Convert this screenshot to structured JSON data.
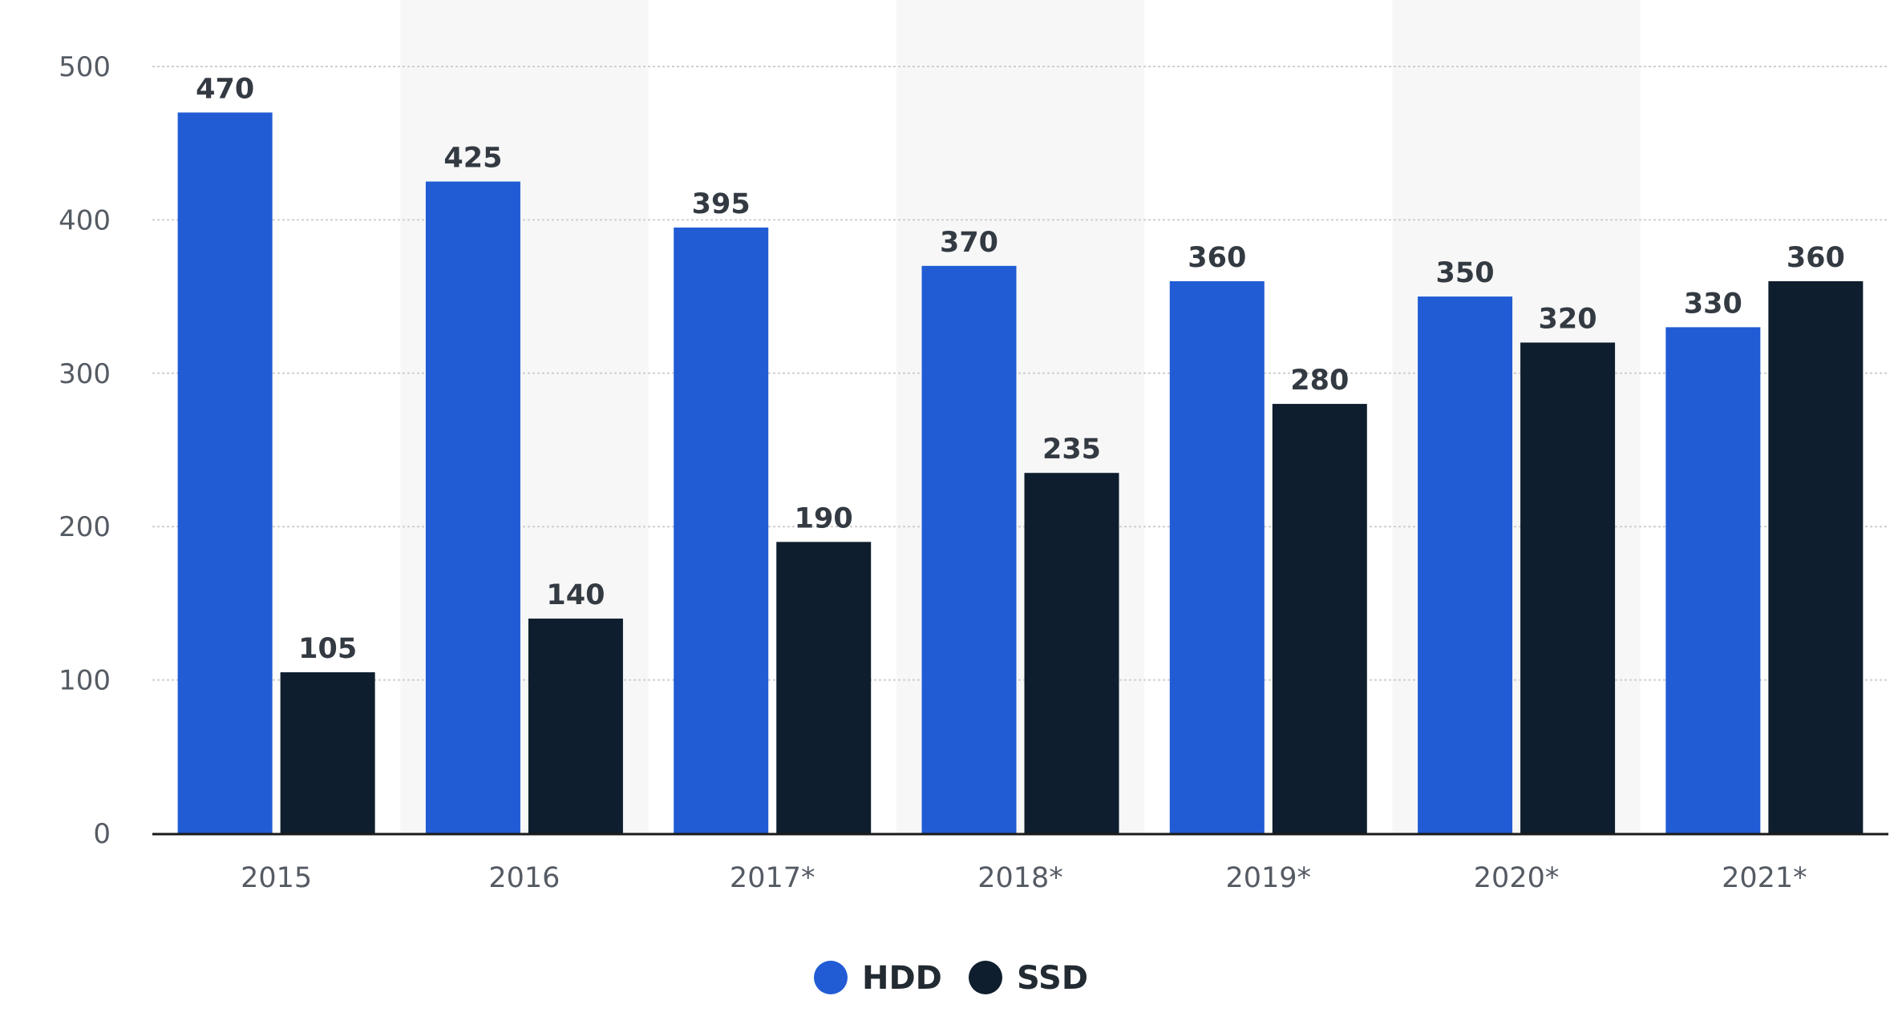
{
  "chart_data": {
    "type": "bar",
    "categories": [
      "2015",
      "2016",
      "2017*",
      "2018*",
      "2019*",
      "2020*",
      "2021*"
    ],
    "series": [
      {
        "name": "HDD",
        "color": "#215cd5",
        "values": [
          470,
          425,
          395,
          370,
          360,
          350,
          330
        ]
      },
      {
        "name": "SSD",
        "color": "#0f1e2e",
        "values": [
          105,
          140,
          190,
          235,
          280,
          320,
          360
        ]
      }
    ],
    "yticks": [
      0,
      100,
      200,
      300,
      400,
      500
    ],
    "ylim": [
      0,
      500
    ],
    "title": "",
    "xlabel": "",
    "ylabel": "",
    "grid": true,
    "data_labels": true,
    "legend_position": "bottom-center",
    "band_color": "#f7f7f7",
    "grid_color": "#cfcfcf",
    "axis_color": "#1a1a1a"
  }
}
